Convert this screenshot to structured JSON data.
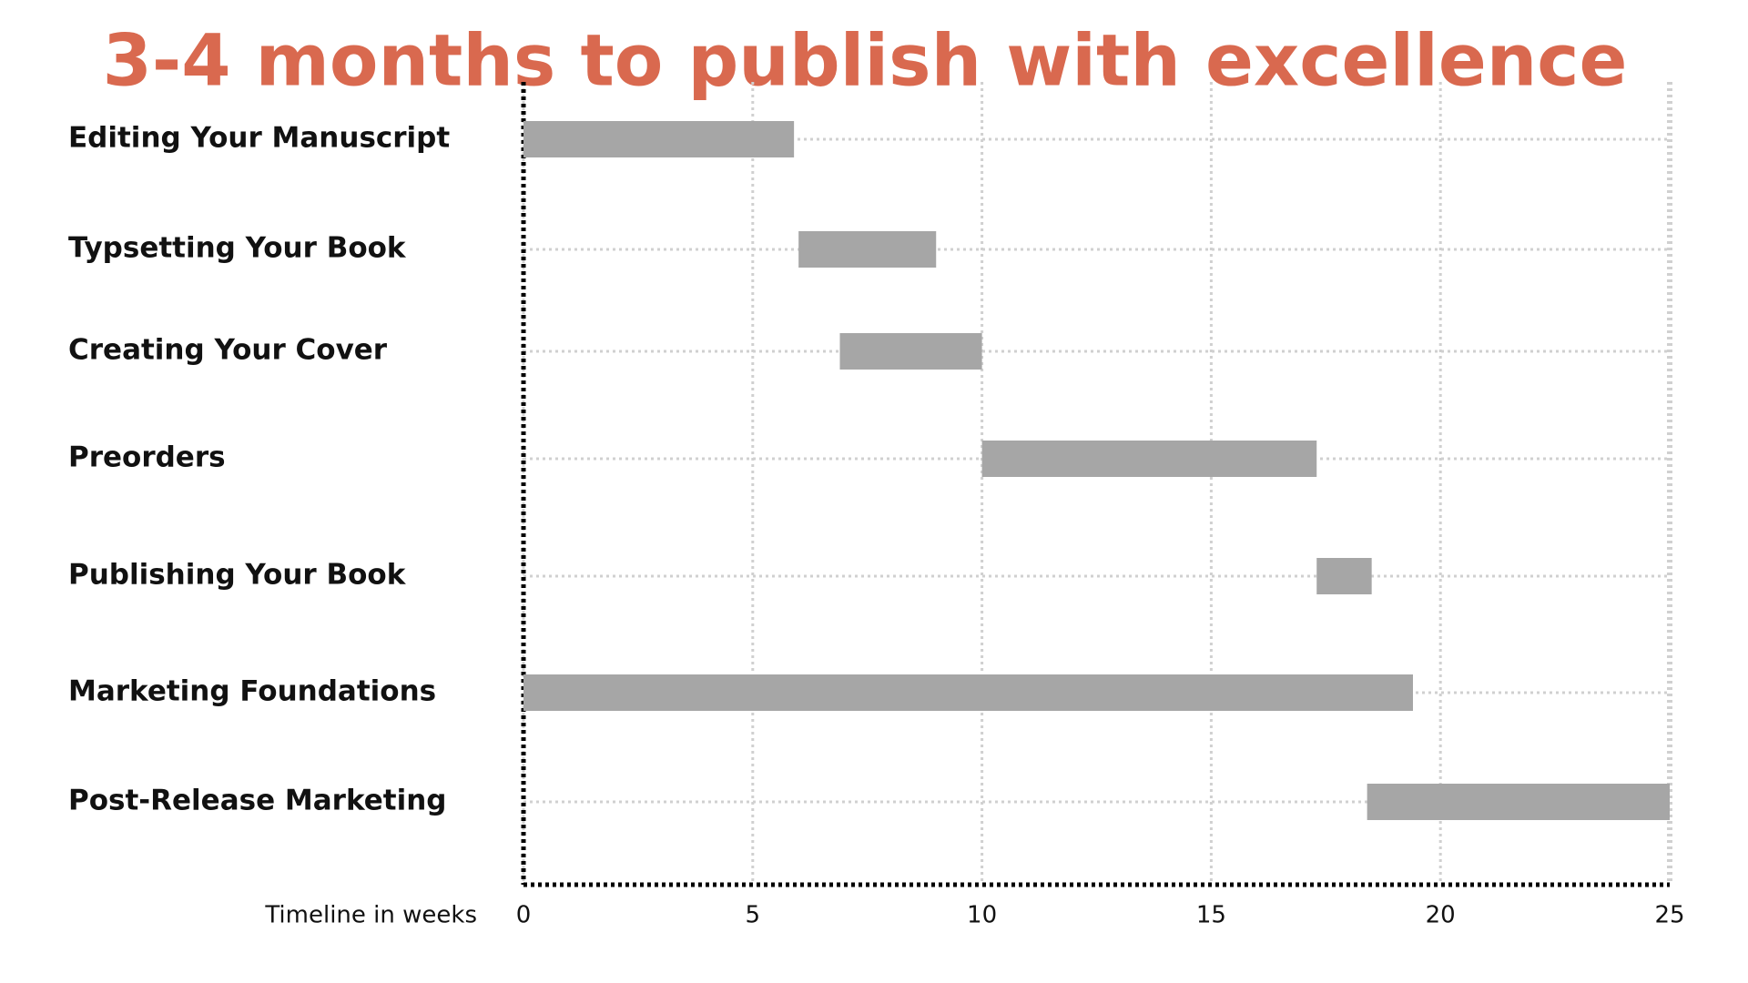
{
  "chart_data": {
    "type": "gantt",
    "title": "3-4 months to publish with excellence",
    "categories": [
      "Editing Your Manuscript",
      "Typsetting Your Book",
      "Creating Your Cover",
      "Preorders",
      "Publishing Your Book",
      "Marketing Foundations",
      "Post-Release Marketing"
    ],
    "start": [
      0,
      6,
      6.9,
      10,
      17.3,
      0,
      18.4
    ],
    "end": [
      5.9,
      9,
      10,
      17.3,
      18.5,
      19.4,
      25
    ],
    "color": "#a6a6a6",
    "x_label": "Timeline in weeks",
    "xlim": [
      0,
      25
    ],
    "xticks": [
      0,
      5,
      10,
      15,
      20,
      25
    ],
    "grid": true
  }
}
